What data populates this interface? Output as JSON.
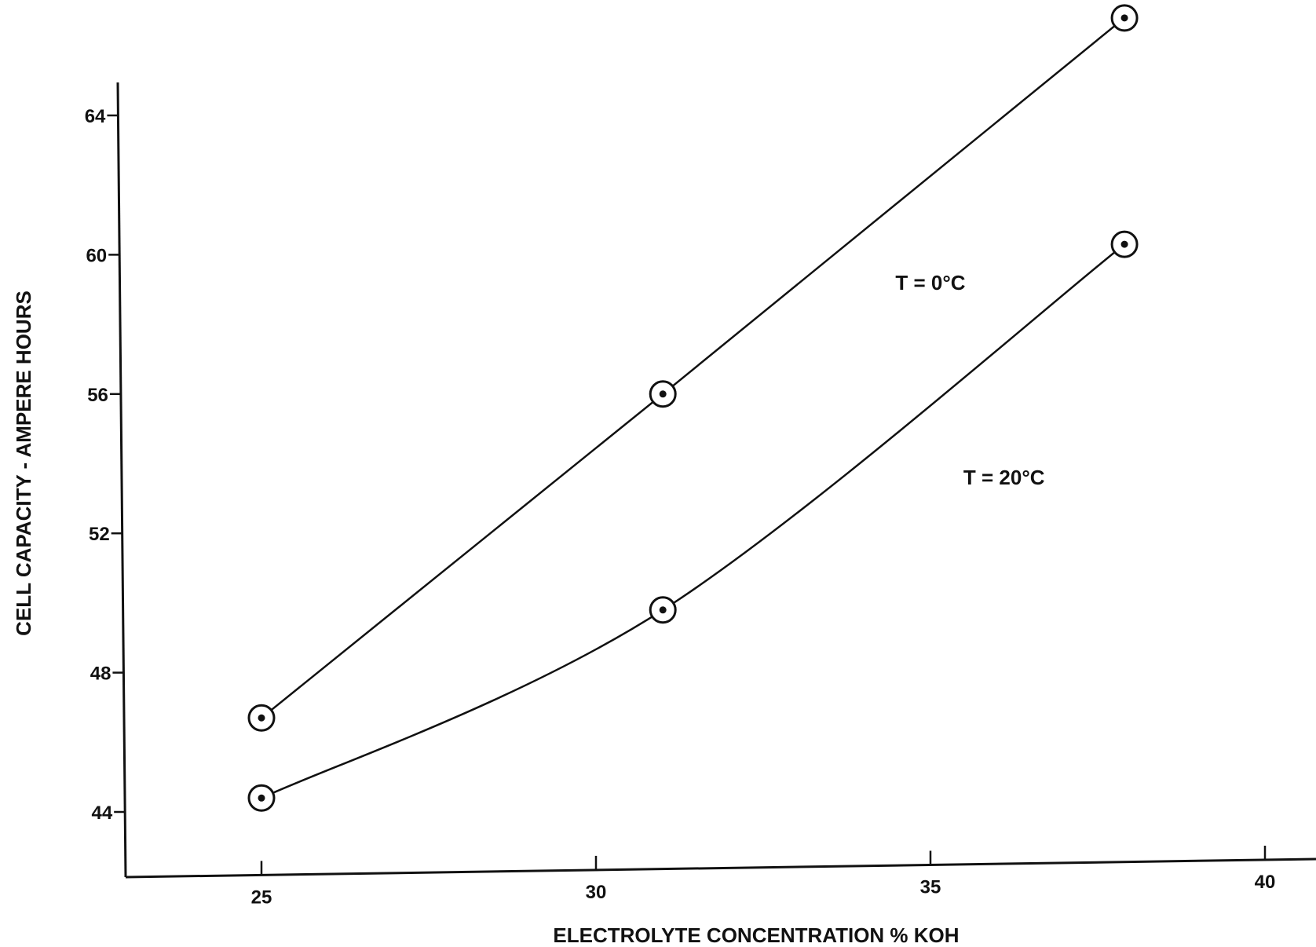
{
  "chart_data": {
    "type": "line",
    "title": "",
    "xlabel": "ELECTROLYTE CONCENTRATION % KOH",
    "ylabel": "CELL CAPACITY - AMPERE HOURS",
    "xlim": [
      23,
      41.5
    ],
    "ylim": [
      42,
      65
    ],
    "xticks": [
      25,
      30,
      35,
      40
    ],
    "yticks": [
      44,
      48,
      52,
      56,
      60,
      64
    ],
    "xtick_labels": [
      "25",
      "30",
      "35",
      "40"
    ],
    "ytick_labels": [
      "44",
      "48",
      "52",
      "56",
      "60",
      "64"
    ],
    "grid": false,
    "legend": "none",
    "line_color": "#111111",
    "series": [
      {
        "name": "T = 0°C",
        "x": [
          25,
          31,
          37.9
        ],
        "y": [
          46.7,
          56.0,
          66.8
        ]
      },
      {
        "name": "T = 20°C",
        "x": [
          25,
          31,
          37.9
        ],
        "y": [
          44.4,
          49.8,
          60.3
        ]
      }
    ]
  }
}
